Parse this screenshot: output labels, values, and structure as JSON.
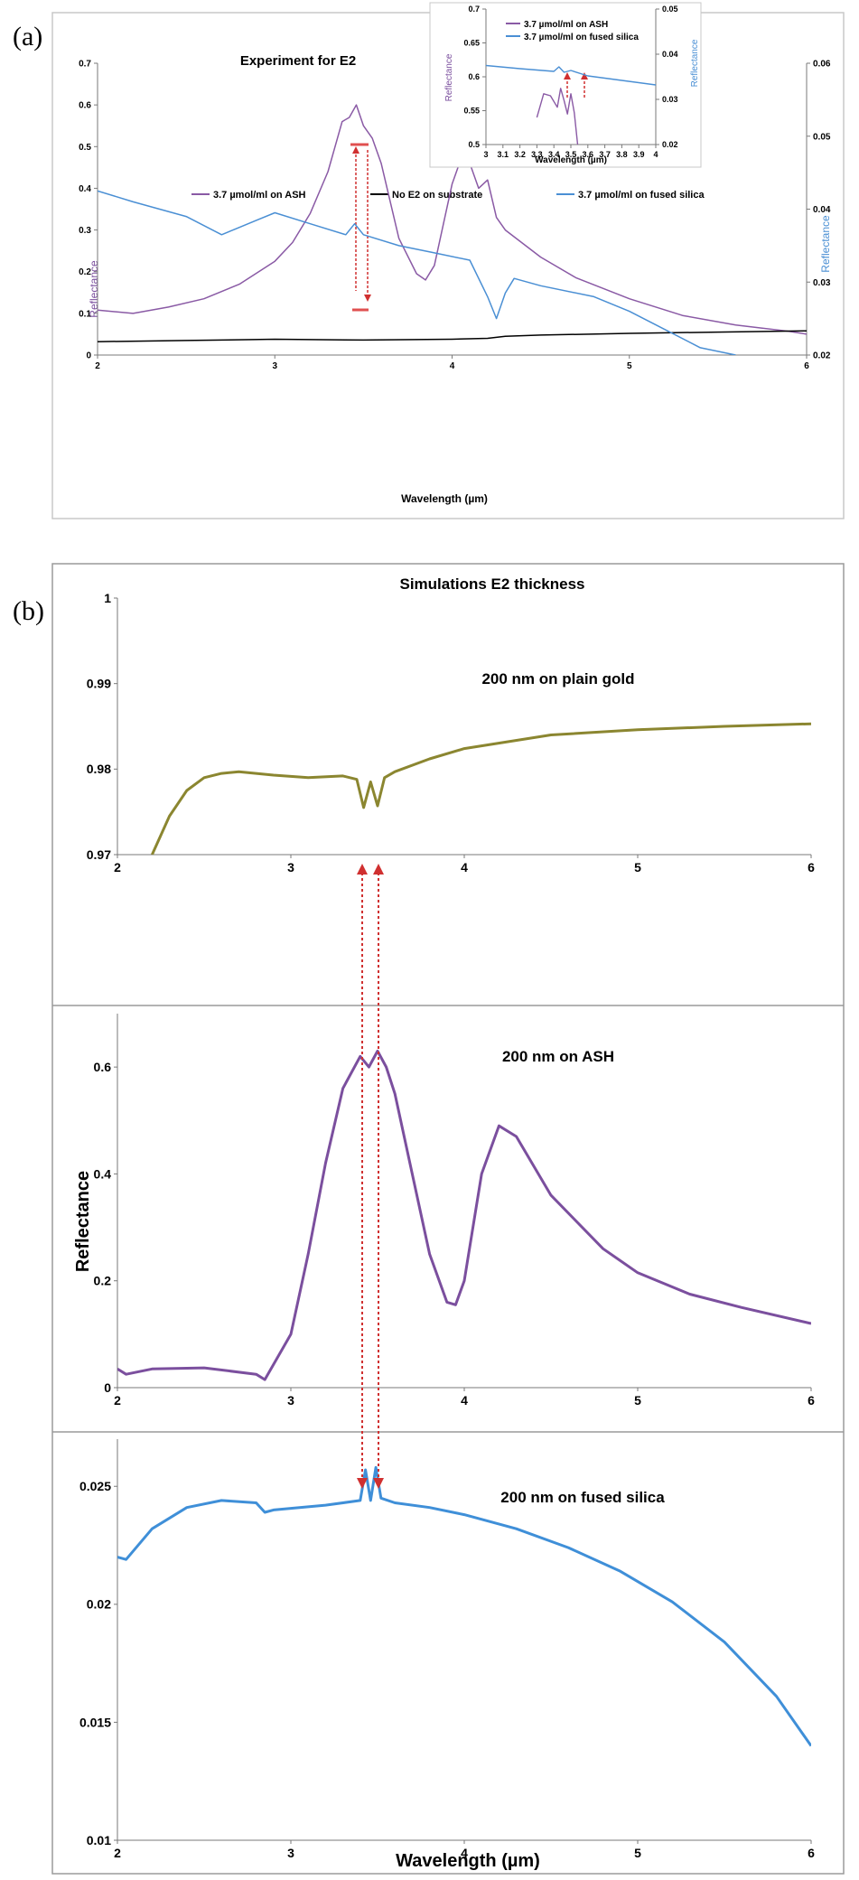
{
  "panels": {
    "a_label": "(a)",
    "b_label": "(b)"
  },
  "chart_data": [
    {
      "type": "line",
      "title": "Experiment for E2",
      "xlabel": "Wavelength (µm)",
      "ylabel": "Reflectance",
      "y2label": "Reflectance",
      "xlim": [
        2,
        6
      ],
      "ylim": [
        0,
        0.7
      ],
      "y2lim": [
        0.02,
        0.06
      ],
      "xticks": [
        "2",
        "3",
        "4",
        "5",
        "6"
      ],
      "yticks": [
        "0",
        "0.1",
        "0.2",
        "0.3",
        "0.4",
        "0.5",
        "0.6",
        "0.7"
      ],
      "y2ticks": [
        "0.02",
        "0.03",
        "0.04",
        "0.05",
        "0.06"
      ],
      "legend_placement": "center",
      "series": [
        {
          "name": "3.7 µmol/ml on ASH",
          "axis": "left",
          "color": "#8a5aa5",
          "x": [
            2,
            2.2,
            2.4,
            2.6,
            2.8,
            3.0,
            3.1,
            3.2,
            3.3,
            3.38,
            3.42,
            3.46,
            3.5,
            3.55,
            3.6,
            3.7,
            3.8,
            3.85,
            3.9,
            4.0,
            4.05,
            4.1,
            4.15,
            4.2,
            4.25,
            4.3,
            4.5,
            4.7,
            5.0,
            5.3,
            5.6,
            5.9,
            6.0
          ],
          "y": [
            0.108,
            0.1,
            0.115,
            0.135,
            0.17,
            0.225,
            0.27,
            0.34,
            0.44,
            0.56,
            0.57,
            0.6,
            0.55,
            0.52,
            0.46,
            0.28,
            0.195,
            0.18,
            0.215,
            0.41,
            0.47,
            0.46,
            0.4,
            0.42,
            0.33,
            0.3,
            0.235,
            0.185,
            0.135,
            0.095,
            0.072,
            0.057,
            0.05
          ]
        },
        {
          "name": "No E2 on substrate",
          "axis": "left",
          "color": "#000000",
          "x": [
            2,
            2.5,
            3,
            3.5,
            4,
            4.2,
            4.3,
            4.5,
            5,
            5.5,
            6
          ],
          "y": [
            0.032,
            0.035,
            0.038,
            0.036,
            0.038,
            0.04,
            0.045,
            0.048,
            0.052,
            0.055,
            0.058
          ]
        },
        {
          "name": "3.7 µmol/ml on fused silica",
          "axis": "right",
          "color": "#4a8fd4",
          "x": [
            2,
            2.2,
            2.5,
            2.7,
            2.9,
            3.0,
            3.2,
            3.4,
            3.45,
            3.5,
            3.7,
            3.9,
            4.1,
            4.2,
            4.25,
            4.3,
            4.35,
            4.5,
            4.8,
            5.0,
            5.2,
            5.4,
            5.6
          ],
          "y": [
            0.0425,
            0.041,
            0.039,
            0.0365,
            0.0385,
            0.0395,
            0.038,
            0.0365,
            0.038,
            0.0365,
            0.035,
            0.034,
            0.033,
            0.028,
            0.025,
            0.0285,
            0.0305,
            0.0295,
            0.028,
            0.026,
            0.0235,
            0.021,
            0.02
          ]
        }
      ],
      "inset": {
        "xlabel": "Wavelength (µm)",
        "ylabel": "Reflectance",
        "y2label": "Reflectance",
        "xlim": [
          3,
          4
        ],
        "ylim": [
          0.5,
          0.7
        ],
        "y2lim": [
          0.02,
          0.05
        ],
        "xticks": [
          "3",
          "3.1",
          "3.2",
          "3.3",
          "3.4",
          "3.5",
          "3.6",
          "3.7",
          "3.8",
          "3.9",
          "4"
        ],
        "yticks": [
          "0.5",
          "0.55",
          "0.6",
          "0.65",
          "0.7"
        ],
        "y2ticks": [
          "0.02",
          "0.03",
          "0.04",
          "0.05"
        ],
        "series": [
          {
            "name": "3.7 µmol/ml on ASH",
            "axis": "left",
            "color": "#8a5aa5",
            "x": [
              3.3,
              3.34,
              3.38,
              3.42,
              3.44,
              3.46,
              3.48,
              3.5,
              3.52,
              3.54
            ],
            "y": [
              0.54,
              0.575,
              0.572,
              0.555,
              0.583,
              0.565,
              0.545,
              0.575,
              0.547,
              0.5
            ]
          },
          {
            "name": "3.7 µmol/ml on fused silica",
            "axis": "right",
            "color": "#4a8fd4",
            "x": [
              3.0,
              3.2,
              3.4,
              3.43,
              3.46,
              3.5,
              3.6,
              3.8,
              4.0
            ],
            "y": [
              0.0375,
              0.0368,
              0.0362,
              0.0372,
              0.036,
              0.0364,
              0.0352,
              0.0342,
              0.0332
            ]
          }
        ]
      }
    },
    {
      "type": "line",
      "title": "Simulations E2 thickness",
      "annotation": "200 nm on plain gold",
      "xlim": [
        2,
        6
      ],
      "ylim": [
        0.97,
        1.0
      ],
      "xticks": [
        "2",
        "3",
        "4",
        "5",
        "6"
      ],
      "yticks": [
        "0.97",
        "0.98",
        "0.99",
        "1"
      ],
      "series": [
        {
          "color": "#8b8630",
          "x": [
            2.2,
            2.3,
            2.4,
            2.5,
            2.6,
            2.7,
            2.9,
            3.1,
            3.3,
            3.38,
            3.42,
            3.46,
            3.5,
            3.54,
            3.6,
            3.8,
            4.0,
            4.5,
            5.0,
            5.5,
            6.0
          ],
          "y": [
            0.97,
            0.9745,
            0.9775,
            0.979,
            0.9795,
            0.9797,
            0.9793,
            0.979,
            0.9792,
            0.9788,
            0.9755,
            0.9785,
            0.9757,
            0.979,
            0.9797,
            0.9812,
            0.9824,
            0.984,
            0.9846,
            0.985,
            0.9853
          ]
        }
      ]
    },
    {
      "type": "line",
      "annotation": "200 nm on ASH",
      "ylabel": "Reflectance",
      "xlim": [
        2,
        6
      ],
      "ylim": [
        0,
        0.7
      ],
      "xticks": [
        "2",
        "3",
        "4",
        "5",
        "6"
      ],
      "yticks": [
        "0",
        "0.2",
        "0.4",
        "0.6"
      ],
      "series": [
        {
          "color": "#7b4f9e",
          "x": [
            2.0,
            2.05,
            2.2,
            2.5,
            2.8,
            2.85,
            3.0,
            3.1,
            3.2,
            3.3,
            3.4,
            3.45,
            3.5,
            3.55,
            3.6,
            3.7,
            3.8,
            3.9,
            3.95,
            4.0,
            4.1,
            4.2,
            4.3,
            4.5,
            4.8,
            5.0,
            5.3,
            5.6,
            6.0
          ],
          "y": [
            0.035,
            0.025,
            0.035,
            0.037,
            0.025,
            0.015,
            0.1,
            0.25,
            0.42,
            0.56,
            0.62,
            0.6,
            0.63,
            0.6,
            0.55,
            0.4,
            0.25,
            0.16,
            0.155,
            0.2,
            0.4,
            0.49,
            0.47,
            0.36,
            0.26,
            0.215,
            0.175,
            0.15,
            0.12
          ]
        }
      ]
    },
    {
      "type": "line",
      "annotation": "200 nm on fused silica",
      "xlabel": "Wavelength (µm)",
      "xlim": [
        2,
        6
      ],
      "ylim": [
        0.01,
        0.027
      ],
      "xticks": [
        "2",
        "3",
        "4",
        "5",
        "6"
      ],
      "yticks": [
        "0.01",
        "0.015",
        "0.02",
        "0.025"
      ],
      "series": [
        {
          "color": "#3f8fd8",
          "x": [
            2.0,
            2.05,
            2.2,
            2.4,
            2.6,
            2.8,
            2.85,
            2.9,
            3.2,
            3.4,
            3.43,
            3.46,
            3.49,
            3.52,
            3.6,
            3.8,
            4.0,
            4.3,
            4.6,
            4.9,
            5.2,
            5.5,
            5.8,
            6.0
          ],
          "y": [
            0.022,
            0.0219,
            0.0232,
            0.0241,
            0.0244,
            0.0243,
            0.0239,
            0.024,
            0.0242,
            0.0244,
            0.0257,
            0.0244,
            0.0258,
            0.0245,
            0.0243,
            0.0241,
            0.0238,
            0.0232,
            0.0224,
            0.0214,
            0.0201,
            0.0184,
            0.0161,
            0.014
          ]
        }
      ]
    }
  ]
}
